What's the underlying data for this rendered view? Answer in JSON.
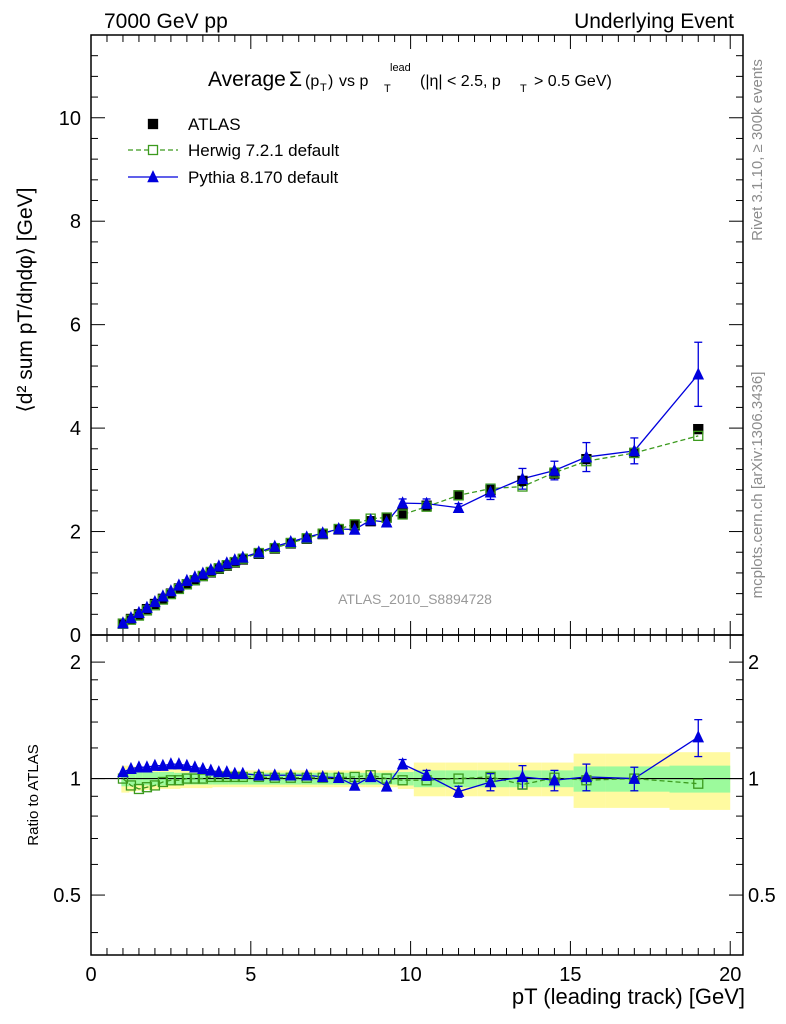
{
  "header": {
    "left": "7000 GeV pp",
    "right": "Underlying Event"
  },
  "side": {
    "rivet": "Rivet 3.1.10, ≥ 300k events",
    "mcplots": "mcplots.cern.ch [arXiv:1306.3436]"
  },
  "chart_data": {
    "type": "scatter",
    "title": "Average Σ(pT) vs pT lead (|η| < 2.5, pT > 0.5 GeV)",
    "analysis_label": "ATLAS_2010_S8894728",
    "xlabel": "pT (leading track) [GeV]",
    "ylabel": "⟨d² sum pT/dηdφ⟩ [GeV]",
    "ratio_ylabel": "Ratio to ATLAS",
    "xlim": [
      0,
      20.4
    ],
    "ylim": [
      0,
      11.6
    ],
    "ratio_ylim": [
      0.35,
      2.35
    ],
    "ratio_scale": "log",
    "xticks": [
      0,
      5,
      10,
      15,
      20
    ],
    "yticks": [
      0,
      2,
      4,
      6,
      8,
      10
    ],
    "ratio_yticks": [
      0.5,
      1,
      2
    ],
    "legend_position": "top-left",
    "colors": {
      "data": "#000000",
      "herwig": "#3c9a1e",
      "pythia": "#0000dd"
    },
    "series": [
      {
        "name": "ATLAS",
        "style": "data",
        "x": [
          1.0,
          1.25,
          1.5,
          1.75,
          2.0,
          2.25,
          2.5,
          2.75,
          3.0,
          3.25,
          3.5,
          3.75,
          4.0,
          4.25,
          4.5,
          4.75,
          5.25,
          5.75,
          6.25,
          6.75,
          7.25,
          7.75,
          8.25,
          8.75,
          9.25,
          9.75,
          10.5,
          11.5,
          12.5,
          13.5,
          14.5,
          15.5,
          17.0,
          19.0
        ],
        "y": [
          0.22,
          0.31,
          0.4,
          0.5,
          0.6,
          0.7,
          0.8,
          0.9,
          0.98,
          1.06,
          1.14,
          1.21,
          1.28,
          1.34,
          1.4,
          1.46,
          1.57,
          1.67,
          1.77,
          1.86,
          1.95,
          2.04,
          2.12,
          2.2,
          2.27,
          2.35,
          2.5,
          2.7,
          2.8,
          2.98,
          3.12,
          3.4,
          3.52,
          3.98
        ]
      },
      {
        "name": "Herwig 7.2.1 default",
        "style": "open-square-dashed",
        "x": [
          1.0,
          1.25,
          1.5,
          1.75,
          2.0,
          2.25,
          2.5,
          2.75,
          3.0,
          3.25,
          3.5,
          3.75,
          4.0,
          4.25,
          4.5,
          4.75,
          5.25,
          5.75,
          6.25,
          6.75,
          7.25,
          7.75,
          8.25,
          8.75,
          9.25,
          9.75,
          10.5,
          11.5,
          12.5,
          13.5,
          14.5,
          15.5,
          17.0,
          19.0
        ],
        "y": [
          0.22,
          0.295,
          0.375,
          0.475,
          0.575,
          0.685,
          0.79,
          0.89,
          0.98,
          1.06,
          1.14,
          1.22,
          1.29,
          1.35,
          1.41,
          1.475,
          1.585,
          1.68,
          1.78,
          1.87,
          1.96,
          2.05,
          2.14,
          2.25,
          2.27,
          2.33,
          2.48,
          2.7,
          2.83,
          2.87,
          3.14,
          3.36,
          3.52,
          3.85
        ],
        "ratio": [
          1.0,
          0.96,
          0.94,
          0.95,
          0.96,
          0.98,
          0.99,
          0.99,
          1.0,
          1.0,
          1.0,
          1.01,
          1.01,
          1.01,
          1.01,
          1.01,
          1.01,
          1.005,
          1.005,
          1.005,
          1.005,
          1.005,
          1.01,
          1.02,
          1.0,
          0.99,
          0.99,
          1.0,
          1.01,
          0.965,
          1.005,
          0.99,
          1.0,
          0.97
        ]
      },
      {
        "name": "Pythia 8.170 default",
        "style": "filled-triangle-solid",
        "x": [
          1.0,
          1.25,
          1.5,
          1.75,
          2.0,
          2.25,
          2.5,
          2.75,
          3.0,
          3.25,
          3.5,
          3.75,
          4.0,
          4.25,
          4.5,
          4.75,
          5.25,
          5.75,
          6.25,
          6.75,
          7.25,
          7.75,
          8.25,
          8.75,
          9.25,
          9.75,
          10.5,
          11.5,
          12.5,
          13.5,
          14.5,
          15.5,
          17.0,
          19.0
        ],
        "y": [
          0.23,
          0.33,
          0.43,
          0.53,
          0.64,
          0.75,
          0.85,
          0.96,
          1.05,
          1.12,
          1.19,
          1.26,
          1.33,
          1.39,
          1.45,
          1.5,
          1.6,
          1.71,
          1.8,
          1.89,
          1.97,
          2.05,
          2.04,
          2.22,
          2.18,
          2.55,
          2.54,
          2.46,
          2.76,
          3.02,
          3.18,
          3.44,
          3.56,
          5.04
        ],
        "yerr": [
          0,
          0,
          0,
          0,
          0,
          0,
          0,
          0,
          0,
          0,
          0,
          0,
          0,
          0,
          0,
          0,
          0,
          0,
          0,
          0,
          0,
          0,
          0,
          0,
          0,
          0.08,
          0.09,
          0.08,
          0.14,
          0.2,
          0.18,
          0.28,
          0.25,
          0.62
        ],
        "ratio": [
          1.04,
          1.06,
          1.07,
          1.07,
          1.08,
          1.08,
          1.09,
          1.09,
          1.08,
          1.07,
          1.06,
          1.05,
          1.04,
          1.04,
          1.03,
          1.03,
          1.02,
          1.02,
          1.02,
          1.02,
          1.01,
          1.005,
          0.96,
          1.01,
          0.955,
          1.09,
          1.02,
          0.925,
          0.98,
          1.01,
          0.99,
          1.01,
          1.0,
          1.28
        ],
        "ratio_err": [
          0,
          0,
          0,
          0,
          0,
          0,
          0,
          0,
          0,
          0,
          0,
          0,
          0,
          0,
          0,
          0,
          0,
          0,
          0,
          0,
          0,
          0,
          0,
          0,
          0,
          0.03,
          0.03,
          0.03,
          0.05,
          0.07,
          0.06,
          0.08,
          0.07,
          0.14
        ]
      }
    ],
    "ratio_bands": {
      "x_edges": [
        0.95,
        1.2,
        1.4,
        1.6,
        1.8,
        2.1,
        2.3,
        2.6,
        2.8,
        3.1,
        3.3,
        3.6,
        3.8,
        4.1,
        4.3,
        4.6,
        4.9,
        5.6,
        6.1,
        6.6,
        7.1,
        7.6,
        8.1,
        8.6,
        9.1,
        9.6,
        10.1,
        11.1,
        12.1,
        13.1,
        14.1,
        15.1,
        16.1,
        18.1,
        20.0
      ],
      "inner_half_width": [
        0.045,
        0.045,
        0.04,
        0.04,
        0.04,
        0.04,
        0.04,
        0.035,
        0.035,
        0.035,
        0.035,
        0.035,
        0.035,
        0.035,
        0.035,
        0.035,
        0.035,
        0.035,
        0.035,
        0.035,
        0.035,
        0.035,
        0.035,
        0.035,
        0.035,
        0.04,
        0.05,
        0.05,
        0.05,
        0.05,
        0.05,
        0.075,
        0.075,
        0.08
      ],
      "outer_half_width": [
        0.08,
        0.075,
        0.07,
        0.065,
        0.065,
        0.06,
        0.06,
        0.06,
        0.055,
        0.055,
        0.055,
        0.055,
        0.05,
        0.05,
        0.05,
        0.05,
        0.05,
        0.05,
        0.05,
        0.05,
        0.05,
        0.05,
        0.05,
        0.05,
        0.05,
        0.06,
        0.1,
        0.1,
        0.1,
        0.1,
        0.1,
        0.16,
        0.16,
        0.17
      ],
      "inner_color": "#9cfa9c",
      "outer_color": "#fffaa0"
    }
  }
}
